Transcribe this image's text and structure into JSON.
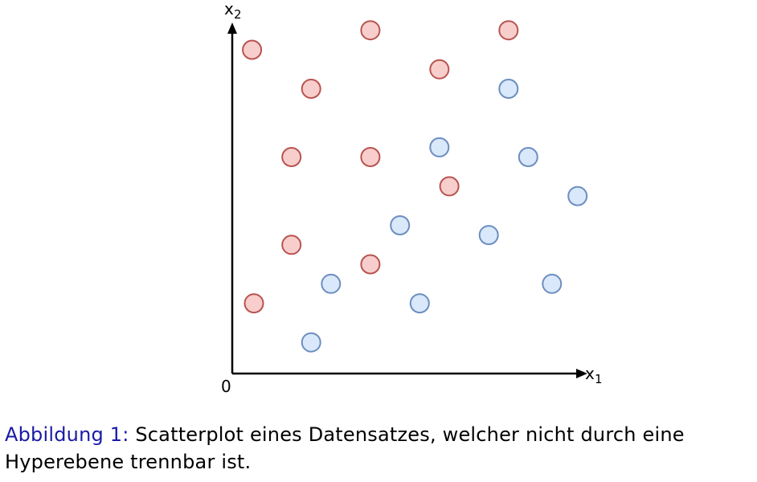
{
  "chart_data": {
    "type": "scatter",
    "xlabel": "x",
    "xlabel_sub": "1",
    "ylabel": "x",
    "ylabel_sub": "2",
    "origin_label": "0",
    "xlim": [
      0,
      18
    ],
    "ylim": [
      0,
      18
    ],
    "grid": false,
    "series": [
      {
        "color": "#f8cecc",
        "stroke": "#b85450",
        "points": [
          {
            "x": 1.0,
            "y": 16.6
          },
          {
            "x": 7.0,
            "y": 17.6
          },
          {
            "x": 14.0,
            "y": 17.6
          },
          {
            "x": 10.5,
            "y": 15.6
          },
          {
            "x": 4.0,
            "y": 14.6
          },
          {
            "x": 3.0,
            "y": 11.1
          },
          {
            "x": 7.0,
            "y": 11.1
          },
          {
            "x": 11.0,
            "y": 9.6
          },
          {
            "x": 3.0,
            "y": 6.6
          },
          {
            "x": 7.0,
            "y": 5.6
          },
          {
            "x": 1.1,
            "y": 3.6
          }
        ]
      },
      {
        "color": "#dae8fc",
        "stroke": "#6c8ebf",
        "points": [
          {
            "x": 14.0,
            "y": 14.6
          },
          {
            "x": 10.5,
            "y": 11.6
          },
          {
            "x": 15.0,
            "y": 11.1
          },
          {
            "x": 17.5,
            "y": 9.1
          },
          {
            "x": 8.5,
            "y": 7.6
          },
          {
            "x": 13.0,
            "y": 7.1
          },
          {
            "x": 5.0,
            "y": 4.6
          },
          {
            "x": 16.2,
            "y": 4.6
          },
          {
            "x": 9.5,
            "y": 3.6
          },
          {
            "x": 4.0,
            "y": 1.6
          }
        ]
      }
    ]
  },
  "caption": {
    "label": "Abbildung 1:",
    "line1": "Scatterplot eines Datensatzes, welcher nicht durch eine",
    "line2": "Hyperebene trennbar ist."
  }
}
